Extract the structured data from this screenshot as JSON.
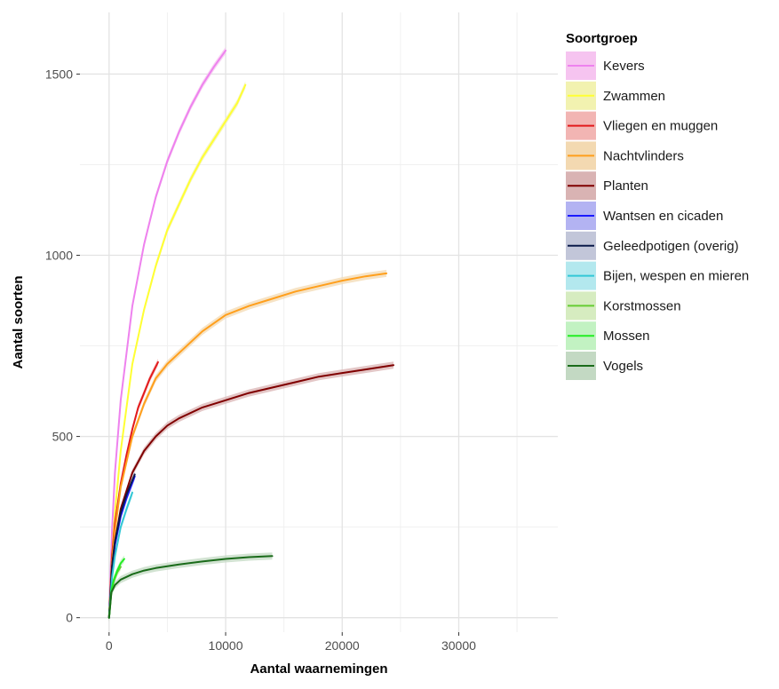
{
  "chart_data": {
    "type": "line",
    "xlabel": "Aantal waarnemingen",
    "ylabel": "Aantal soorten",
    "xlim": [
      -2500,
      38500
    ],
    "ylim": [
      -40,
      1670
    ],
    "x_ticks": [
      0,
      10000,
      20000,
      30000
    ],
    "x_tick_labels": [
      "0",
      "10000",
      "20000",
      "30000"
    ],
    "y_ticks": [
      0,
      500,
      1000,
      1500
    ],
    "y_tick_labels": [
      "0",
      "500",
      "1000",
      "1500"
    ],
    "grid": true,
    "legend_title": "Soortgroep",
    "legend_position": "right",
    "series": [
      {
        "name": "Kevers",
        "color": "#ee82ee",
        "band_color": "#f6c4f0",
        "x": [
          0,
          250,
          500,
          1000,
          2000,
          3000,
          4000,
          5000,
          6000,
          7000,
          8000,
          9000,
          10000
        ],
        "y": [
          0,
          240,
          400,
          600,
          860,
          1030,
          1160,
          1260,
          1340,
          1410,
          1470,
          1520,
          1565
        ]
      },
      {
        "name": "Zwammen",
        "color": "#ffff33",
        "band_color": "#f2f2b0",
        "x": [
          0,
          250,
          500,
          1000,
          2000,
          3000,
          4000,
          5000,
          6000,
          7000,
          8000,
          9000,
          10000,
          11000,
          11700
        ],
        "y": [
          0,
          170,
          290,
          460,
          700,
          850,
          970,
          1070,
          1140,
          1210,
          1270,
          1320,
          1370,
          1420,
          1470
        ]
      },
      {
        "name": "Vliegen en muggen",
        "color": "#e31a1c",
        "band_color": "#f2b5b3",
        "x": [
          0,
          250,
          500,
          1000,
          1500,
          2000,
          2500,
          3000,
          3500,
          4200
        ],
        "y": [
          0,
          170,
          260,
          370,
          450,
          520,
          580,
          620,
          660,
          705
        ]
      },
      {
        "name": "Nachtvlinders",
        "color": "#ff9f1c",
        "band_color": "#f3d9b1",
        "x": [
          0,
          250,
          500,
          1000,
          2000,
          3000,
          4000,
          5000,
          6000,
          8000,
          10000,
          12000,
          14000,
          16000,
          18000,
          20000,
          22000,
          23800
        ],
        "y": [
          0,
          150,
          240,
          360,
          500,
          590,
          660,
          700,
          730,
          790,
          835,
          860,
          880,
          900,
          915,
          930,
          942,
          950
        ]
      },
      {
        "name": "Planten",
        "color": "#800000",
        "band_color": "#d9b3b3",
        "x": [
          0,
          250,
          500,
          1000,
          2000,
          3000,
          4000,
          5000,
          6000,
          8000,
          10000,
          12000,
          14000,
          16000,
          18000,
          20000,
          22000,
          24400
        ],
        "y": [
          0,
          140,
          210,
          300,
          400,
          460,
          500,
          530,
          550,
          580,
          600,
          620,
          635,
          650,
          665,
          675,
          685,
          697
        ]
      },
      {
        "name": "Wantsen en cicaden",
        "color": "#1a1aff",
        "band_color": "#b3b3f2",
        "x": [
          0,
          250,
          500,
          1000,
          1500,
          2200
        ],
        "y": [
          0,
          130,
          200,
          280,
          330,
          390
        ]
      },
      {
        "name": "Geleedpotigen (overig)",
        "color": "#0a1a4a",
        "band_color": "#c2c6d9",
        "x": [
          0,
          250,
          500,
          1000,
          1500,
          2200
        ],
        "y": [
          0,
          140,
          210,
          290,
          340,
          395
        ]
      },
      {
        "name": "Bijen, wespen en mieren",
        "color": "#33c7d6",
        "band_color": "#b3e8ee",
        "x": [
          0,
          250,
          500,
          1000,
          1500,
          2000
        ],
        "y": [
          0,
          110,
          170,
          250,
          300,
          345
        ]
      },
      {
        "name": "Korstmossen",
        "color": "#66cc33",
        "band_color": "#d6ecc0",
        "x": [
          0,
          200,
          400,
          700,
          1000
        ],
        "y": [
          0,
          70,
          100,
          125,
          140
        ]
      },
      {
        "name": "Mossen",
        "color": "#22ee22",
        "band_color": "#c2f2c2",
        "x": [
          0,
          200,
          400,
          700,
          1000,
          1300
        ],
        "y": [
          0,
          75,
          105,
          130,
          150,
          162
        ]
      },
      {
        "name": "Vogels",
        "color": "#1a6b1a",
        "band_color": "#c3d9c3",
        "x": [
          0,
          200,
          500,
          1000,
          2000,
          3000,
          4000,
          6000,
          8000,
          10000,
          12000,
          14000
        ],
        "y": [
          0,
          70,
          90,
          105,
          120,
          130,
          137,
          147,
          155,
          162,
          167,
          170
        ]
      }
    ]
  }
}
